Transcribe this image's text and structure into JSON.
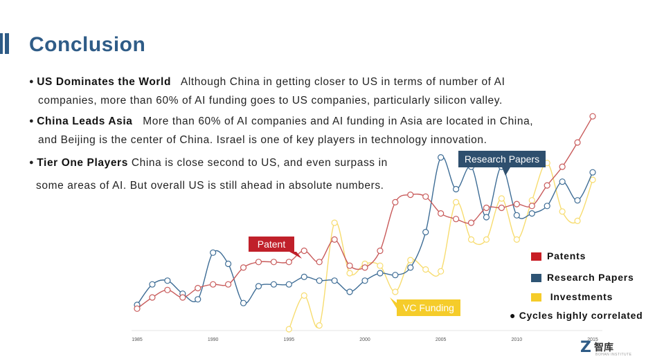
{
  "slide": {
    "title": "Conclusion",
    "bullets": [
      {
        "heading": "US Dominates the World",
        "line1": "Although China in getting closer to US in terms of number of AI",
        "line2": "companies, more than 60% of AI funding goes to US companies, particularly silicon valley."
      },
      {
        "heading": "China Leads Asia",
        "line1": "More than 60% of AI companies and AI funding in Asia are located in China,",
        "line2": "and Beijing is the center of China. Israel is one of key players  in technology innovation."
      },
      {
        "heading": "Tier One Players",
        "line1": "China is close second to US, and even surpass in",
        "line2": "some areas of AI.  But overall US is still ahead in absolute numbers."
      }
    ],
    "cycles_note": "Cycles highly correlated",
    "logo_text": "智库",
    "logo_sub": "BOHAN INSTITUTE"
  },
  "chart_data": {
    "type": "line",
    "title": "",
    "xlabel": "",
    "ylabel": "",
    "xlim": [
      1985,
      2015
    ],
    "ylim": [
      0,
      100
    ],
    "x_ticks": [
      "1985",
      "1990",
      "1995",
      "2000",
      "2005",
      "2010",
      "2015"
    ],
    "grid": false,
    "legend": "right",
    "annotations": [
      {
        "text": "Patent",
        "series": "Patents",
        "color": "#c0202a"
      },
      {
        "text": "Research Papers",
        "series": "Research Papers",
        "color": "#2e4f6e"
      },
      {
        "text": "VC Funding",
        "series": "Investments",
        "color": "#f5cc2a"
      }
    ],
    "series": [
      {
        "name": "Patents",
        "color": "#c85a5a",
        "x": [
          1985,
          1986,
          1987,
          1988,
          1989,
          1990,
          1991,
          1992,
          1993,
          1994,
          1995,
          1996,
          1997,
          1998,
          1999,
          2000,
          2001,
          2002,
          2003,
          2004,
          2005,
          2006,
          2007,
          2008,
          2009,
          2010,
          2011,
          2012,
          2013,
          2014,
          2015
        ],
        "y": [
          11,
          17,
          21,
          17,
          22,
          24,
          24,
          33,
          36,
          36,
          36,
          42,
          36,
          48,
          34,
          33,
          42,
          68,
          72,
          71,
          62,
          59,
          57,
          65,
          65,
          67,
          66,
          77,
          87,
          100,
          114
        ]
      },
      {
        "name": "Research Papers",
        "color": "#3d6c95",
        "x": [
          1985,
          1986,
          1987,
          1988,
          1989,
          1990,
          1991,
          1992,
          1993,
          1994,
          1995,
          1996,
          1997,
          1998,
          1999,
          2000,
          2001,
          2002,
          2003,
          2004,
          2005,
          2006,
          2007,
          2008,
          2009,
          2010,
          2011,
          2012,
          2013,
          2014,
          2015
        ],
        "y": [
          13,
          24,
          26,
          19,
          16,
          41,
          35,
          14,
          23,
          24,
          24,
          28,
          26,
          26,
          20,
          26,
          30,
          29,
          33,
          52,
          92,
          75,
          87,
          60,
          87,
          61,
          62,
          66,
          79,
          69,
          84
        ]
      },
      {
        "name": "Investments",
        "color": "#f7dc6f",
        "x": [
          1995,
          1996,
          1997,
          1998,
          1999,
          2000,
          2001,
          2002,
          2003,
          2004,
          2005,
          2006,
          2007,
          2008,
          2009,
          2010,
          2011,
          2012,
          2013,
          2014,
          2015
        ],
        "y": [
          0,
          18,
          2,
          57,
          30,
          35,
          34,
          20,
          37,
          32,
          31,
          68,
          48,
          48,
          70,
          48,
          69,
          89,
          63,
          58,
          80
        ]
      }
    ]
  }
}
